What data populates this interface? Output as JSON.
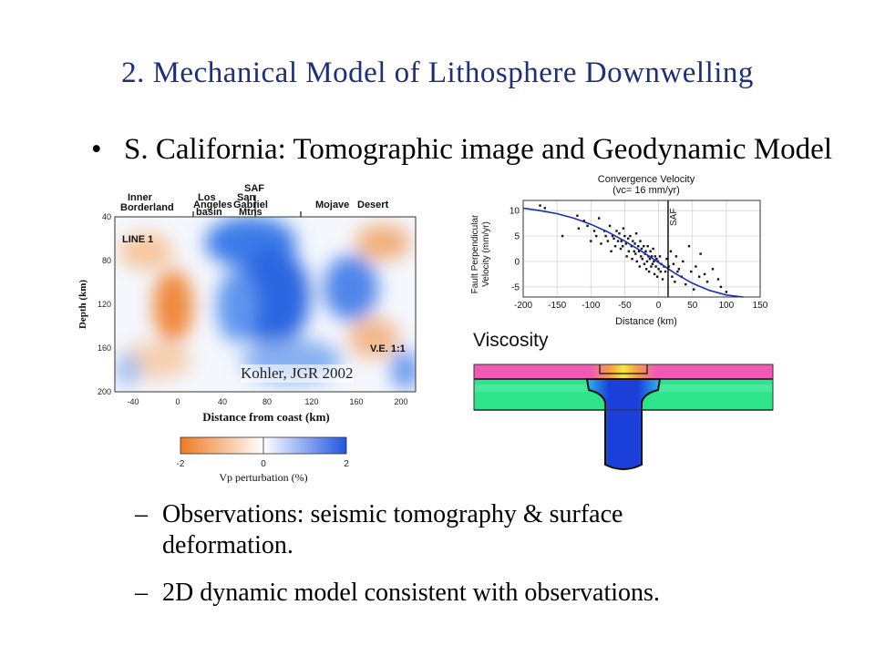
{
  "slide": {
    "title": "2. Mechanical Model of Lithosphere Downwelling",
    "bullet_symbol": "•",
    "bullet_text": "S. California: Tomographic image and Geodynamic Model",
    "sub_bullets": [
      {
        "dash": "–",
        "text": "Observations: seismic tomography & surface deformation."
      },
      {
        "dash": "–",
        "text": "2D dynamic model consistent with observations."
      }
    ]
  },
  "tomography": {
    "region_labels": [
      "Inner",
      "Borderland",
      "Los",
      "Angeles",
      "basin",
      "SAF",
      "San",
      "Gabriel",
      "Mtns",
      "Mojave",
      "Desert"
    ],
    "line_label": "LINE 1",
    "ve_label": "V.E. 1:1",
    "credit": "Kohler, JGR 2002",
    "xlabel": "Distance from coast (km)",
    "ylabel": "Depth (km)",
    "x_ticks": [
      "-40",
      "0",
      "40",
      "80",
      "120",
      "160",
      "200"
    ],
    "y_ticks": [
      "40",
      "80",
      "120",
      "160",
      "200"
    ],
    "colorbar_ticks": [
      "-2",
      "0",
      "2"
    ],
    "colorbar_label": "Vp perturbation (%)",
    "colors": {
      "fast": "#2a6ee8",
      "slow": "#ee7a22",
      "neutral": "#ffffff"
    }
  },
  "chart_data": {
    "type": "scatter",
    "title": "Convergence Velocity",
    "subtitle": "(vc= 16 mm/yr)",
    "xlabel": "Distance (km)",
    "ylabel": "Fault Perpendicular Velocity (mm/yr)",
    "ylabel_lines": [
      "Fault Perpendicular",
      "Velocity (mm/yr)"
    ],
    "xlim": [
      -200,
      150
    ],
    "ylim": [
      -7,
      12
    ],
    "x_ticks": [
      "-200",
      "-150",
      "-100",
      "-50",
      "0",
      "50",
      "100",
      "150"
    ],
    "y_ticks": [
      "10",
      "5",
      "0",
      "-5"
    ],
    "annotation": "SAF",
    "fault_x": 14,
    "grid": true,
    "points": [
      [
        -175,
        11
      ],
      [
        -168,
        10.5
      ],
      [
        -142,
        5
      ],
      [
        -120,
        9
      ],
      [
        -118,
        6.5
      ],
      [
        -110,
        8
      ],
      [
        -105,
        7
      ],
      [
        -100,
        4
      ],
      [
        -95,
        6
      ],
      [
        -92,
        5
      ],
      [
        -88,
        8.5
      ],
      [
        -85,
        3.5
      ],
      [
        -80,
        6
      ],
      [
        -78,
        5
      ],
      [
        -75,
        4
      ],
      [
        -72,
        7
      ],
      [
        -70,
        2
      ],
      [
        -68,
        5
      ],
      [
        -66,
        4.5
      ],
      [
        -64,
        3
      ],
      [
        -62,
        6
      ],
      [
        -60,
        4
      ],
      [
        -58,
        5.5
      ],
      [
        -56,
        2.5
      ],
      [
        -55,
        4
      ],
      [
        -53,
        3
      ],
      [
        -52,
        6.5
      ],
      [
        -50,
        5
      ],
      [
        -48,
        3.5
      ],
      [
        -47,
        1
      ],
      [
        -45,
        4.5
      ],
      [
        -44,
        2
      ],
      [
        -42,
        5
      ],
      [
        -40,
        3
      ],
      [
        -39,
        0.5
      ],
      [
        -38,
        4
      ],
      [
        -36,
        2
      ],
      [
        -35,
        3.5
      ],
      [
        -34,
        1.5
      ],
      [
        -33,
        5.5
      ],
      [
        -32,
        0
      ],
      [
        -30,
        3
      ],
      [
        -29,
        2
      ],
      [
        -28,
        -1
      ],
      [
        -27,
        4
      ],
      [
        -26,
        1
      ],
      [
        -25,
        2.5
      ],
      [
        -24,
        0.5
      ],
      [
        -22,
        3
      ],
      [
        -21,
        -0.5
      ],
      [
        -20,
        1.5
      ],
      [
        -19,
        2
      ],
      [
        -18,
        -1.5
      ],
      [
        -17,
        0
      ],
      [
        -16,
        3
      ],
      [
        -15,
        1
      ],
      [
        -14,
        -2
      ],
      [
        -13,
        0.5
      ],
      [
        -12,
        2
      ],
      [
        -11,
        -1
      ],
      [
        -10,
        1
      ],
      [
        -9,
        -0.5
      ],
      [
        -8,
        2.5
      ],
      [
        -7,
        0
      ],
      [
        -6,
        -2.5
      ],
      [
        -5,
        1
      ],
      [
        -4,
        -1
      ],
      [
        -3,
        0.5
      ],
      [
        -2,
        -3
      ],
      [
        -1,
        0
      ],
      [
        0,
        -1.5
      ],
      [
        2,
        1
      ],
      [
        3,
        -2
      ],
      [
        4,
        -0.5
      ],
      [
        6,
        -3.5
      ],
      [
        8,
        -1
      ],
      [
        10,
        -2
      ],
      [
        12,
        0.5
      ],
      [
        15,
        -1
      ],
      [
        18,
        2
      ],
      [
        20,
        -3
      ],
      [
        22,
        -0.5
      ],
      [
        24,
        -4
      ],
      [
        26,
        1
      ],
      [
        28,
        -2
      ],
      [
        30,
        -1.5
      ],
      [
        34,
        -3
      ],
      [
        36,
        0
      ],
      [
        40,
        -4.5
      ],
      [
        45,
        3
      ],
      [
        48,
        -2
      ],
      [
        52,
        -5.5
      ],
      [
        55,
        -1
      ],
      [
        60,
        -3
      ],
      [
        62,
        1.5
      ],
      [
        68,
        -2.5
      ],
      [
        72,
        -4
      ],
      [
        80,
        -1.5
      ],
      [
        88,
        -3.5
      ],
      [
        92,
        -5
      ],
      [
        100,
        -6
      ]
    ],
    "curve": [
      [
        -200,
        10.5
      ],
      [
        -175,
        10
      ],
      [
        -150,
        9.4
      ],
      [
        -125,
        8.5
      ],
      [
        -100,
        7.3
      ],
      [
        -75,
        5.8
      ],
      [
        -50,
        4
      ],
      [
        -25,
        2
      ],
      [
        0,
        -0.2
      ],
      [
        25,
        -2.4
      ],
      [
        50,
        -4.3
      ],
      [
        75,
        -5.7
      ],
      [
        100,
        -6.6
      ],
      [
        125,
        -7
      ]
    ]
  },
  "viscosity": {
    "label": "Viscosity",
    "colors": {
      "crust": "#f05ab4",
      "mantle": "#2ee38a",
      "asthenosphere": "#56b0f0",
      "drip": "#1433d8",
      "hot": "#f5e23a"
    }
  }
}
